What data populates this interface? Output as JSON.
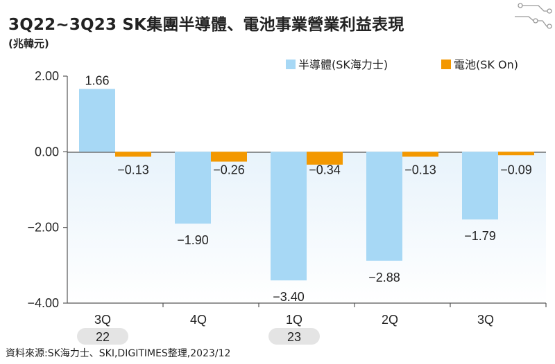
{
  "title": "3Q22~3Q23 SK集團半導體、電池事業營業利益表現",
  "unit": "(兆韓元)",
  "source": "資料來源:SK海力士、SKI,DIGITIMES整理,2023/12",
  "chart_data": {
    "type": "bar",
    "categories": [
      "3Q",
      "4Q",
      "1Q",
      "2Q",
      "3Q"
    ],
    "year_labels": [
      {
        "index": 0,
        "label": "22"
      },
      {
        "index": 2,
        "label": "23"
      }
    ],
    "series": [
      {
        "name": "半導體(SK海力士)",
        "color": "#a7d8f5",
        "values": [
          1.66,
          -1.9,
          -3.4,
          -2.88,
          -1.79
        ]
      },
      {
        "name": "電池(SK On)",
        "color": "#f39800",
        "values": [
          -0.13,
          -0.26,
          -0.34,
          -0.13,
          -0.09
        ]
      }
    ],
    "value_labels": [
      [
        "1.66",
        "−1.90",
        "−3.40",
        "−2.88",
        "−1.79"
      ],
      [
        "−0.13",
        "−0.26",
        "−0.34",
        "−0.13",
        "−0.09"
      ]
    ],
    "ylim": [
      -4,
      2
    ],
    "yticks": [
      2,
      0,
      -2,
      -4
    ],
    "ytick_labels": [
      "2.00",
      "0.00",
      "−2.00",
      "−4.00"
    ],
    "legend_position": "top-right",
    "grid": false
  }
}
